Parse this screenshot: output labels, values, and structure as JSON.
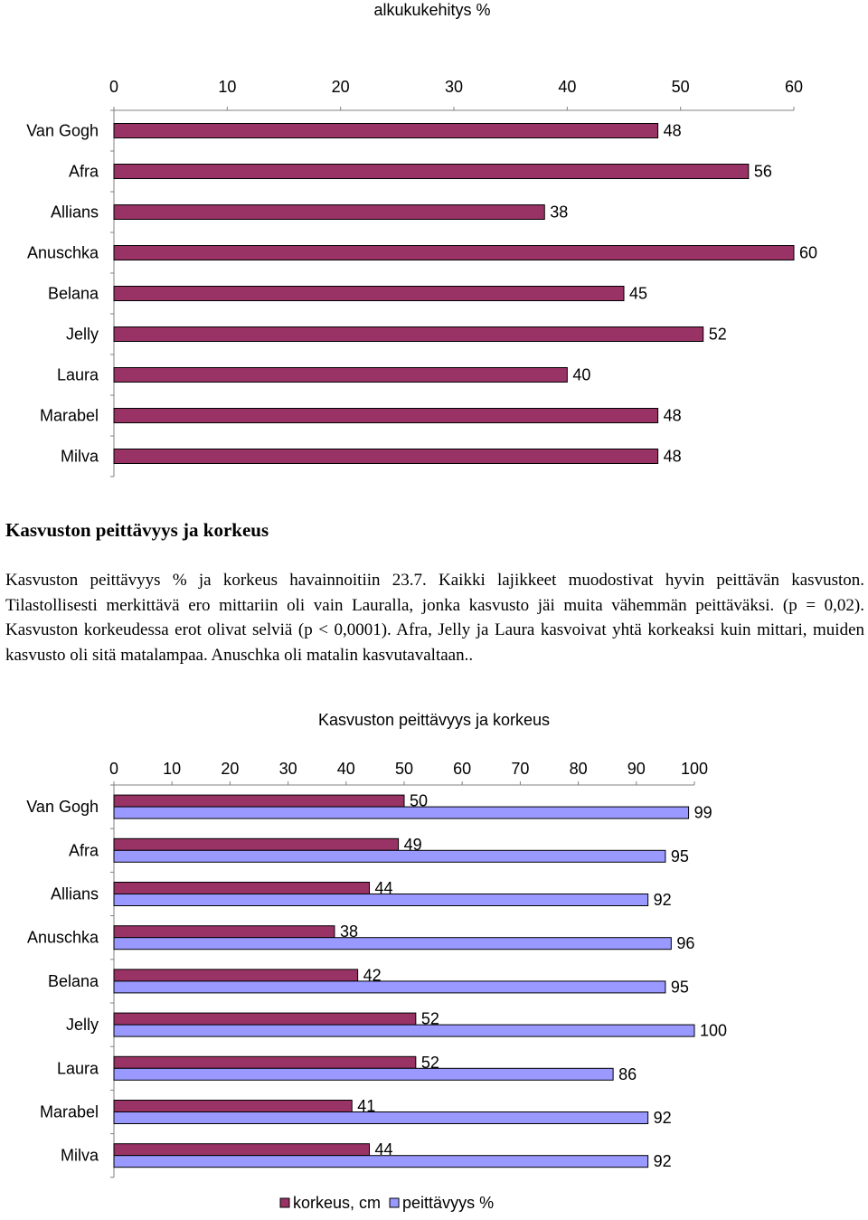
{
  "chart_data": [
    {
      "type": "bar",
      "orientation": "horizontal",
      "title": "alkukukehitys %",
      "categories": [
        "Van Gogh",
        "Afra",
        "Allians",
        "Anuschka",
        "Belana",
        "Jelly",
        "Laura",
        "Marabel",
        "Milva"
      ],
      "values": [
        48,
        56,
        38,
        60,
        45,
        52,
        40,
        48,
        48
      ],
      "xlim": [
        0,
        60
      ],
      "ticks": [
        "0",
        "10",
        "20",
        "30",
        "40",
        "50",
        "60"
      ],
      "axis_position": "top",
      "grid": false,
      "colors": {
        "bar": "#993366"
      }
    },
    {
      "type": "bar",
      "orientation": "horizontal",
      "title": "Kasvuston peittävyys ja korkeus",
      "categories": [
        "Van Gogh",
        "Afra",
        "Allians",
        "Anuschka",
        "Belana",
        "Jelly",
        "Laura",
        "Marabel",
        "Milva"
      ],
      "series": [
        {
          "name": "korkeus, cm",
          "values": [
            50,
            49,
            44,
            38,
            42,
            52,
            52,
            41,
            44
          ],
          "color": "#993366"
        },
        {
          "name": "peittävyys %",
          "values": [
            99,
            95,
            92,
            96,
            95,
            100,
            86,
            92,
            92
          ],
          "color": "#9999ff"
        }
      ],
      "xlim": [
        0,
        100
      ],
      "ticks": [
        "0",
        "10",
        "20",
        "30",
        "40",
        "50",
        "60",
        "70",
        "80",
        "90",
        "100"
      ],
      "axis_position": "top",
      "grid": false,
      "legend_position": "bottom"
    }
  ],
  "text_section": {
    "heading": "Kasvuston peittävyys ja korkeus",
    "body": "Kasvuston peittävyys % ja korkeus havainnoitiin 23.7. Kaikki lajikkeet muodostivat hyvin peittävän kasvuston. Tilastollisesti merkittävä ero mittariin oli vain Lauralla, jonka kasvusto jäi muita vähemmän peittäväksi. (p = 0,02). Kasvuston korkeudessa erot olivat selviä (p < 0,0001). Afra, Jelly ja Laura kasvoivat yhtä korkeaksi kuin mittari, muiden kasvusto oli sitä matalampaa. Anuschka oli matalin kasvutavaltaan.."
  }
}
